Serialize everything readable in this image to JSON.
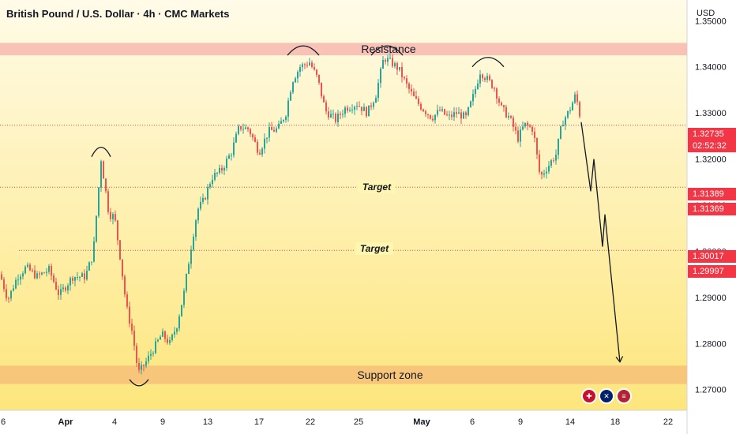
{
  "header": {
    "title": "British Pound / U.S. Dollar · 4h · CMC Markets",
    "currency": "USD"
  },
  "price_tags": {
    "current": "1.32735",
    "countdown": "02:52:32",
    "target1_a": "1.31389",
    "target1_b": "1.31369",
    "target2_a": "1.30017",
    "target2_b": "1.29997"
  },
  "colors": {
    "up": "#26a69a",
    "down": "#ef5350",
    "bg_top": "#fffbe6",
    "bg_bottom": "#fde98a",
    "resistance": "#f7b8b0",
    "support": "#f7c27a"
  },
  "chart_data": {
    "type": "candlestick",
    "symbol": "GBPUSD",
    "ylim": [
      1.2655,
      1.3545
    ],
    "y_ticks": [
      1.27,
      1.28,
      1.29,
      1.3,
      1.31,
      1.32,
      1.33,
      1.34,
      1.35
    ],
    "y_tick_labels": [
      "1.27000",
      "1.28000",
      "1.29000",
      "1.30000",
      "1.31000",
      "1.32000",
      "1.33000",
      "1.34000",
      "1.35000"
    ],
    "x_tick_labels": [
      "6",
      "Apr",
      "4",
      "9",
      "13",
      "17",
      "22",
      "25",
      "May",
      "6",
      "9",
      "14",
      "18",
      "22"
    ],
    "annotations": {
      "resistance_label": "Resistance",
      "resistance_range": [
        1.3425,
        1.3452
      ],
      "support_label": "Support zone",
      "support_range": [
        1.2712,
        1.2752
      ],
      "target1_label": "Target",
      "target1_level": 1.3139,
      "target2_label": "Target",
      "target2_level": 1.3002,
      "current_level": 1.32735
    },
    "ohlc_anchors": [
      [
        0,
        1.295
      ],
      [
        10,
        1.2895
      ],
      [
        22,
        1.2945
      ],
      [
        33,
        1.2965
      ],
      [
        47,
        1.2945
      ],
      [
        62,
        1.296
      ],
      [
        75,
        1.2905
      ],
      [
        92,
        1.2945
      ],
      [
        108,
        1.2945
      ],
      [
        118,
        1.2995
      ],
      [
        128,
        1.32
      ],
      [
        138,
        1.308
      ],
      [
        145,
        1.3075
      ],
      [
        152,
        1.299
      ],
      [
        160,
        1.288
      ],
      [
        168,
        1.282
      ],
      [
        175,
        1.2735
      ],
      [
        185,
        1.276
      ],
      [
        195,
        1.279
      ],
      [
        205,
        1.282
      ],
      [
        215,
        1.28
      ],
      [
        224,
        1.284
      ],
      [
        233,
        1.291
      ],
      [
        241,
        1.3
      ],
      [
        250,
        1.309
      ],
      [
        258,
        1.311
      ],
      [
        268,
        1.316
      ],
      [
        280,
        1.3175
      ],
      [
        293,
        1.3215
      ],
      [
        303,
        1.327
      ],
      [
        315,
        1.3265
      ],
      [
        328,
        1.3215
      ],
      [
        340,
        1.326
      ],
      [
        352,
        1.3265
      ],
      [
        362,
        1.33
      ],
      [
        370,
        1.337
      ],
      [
        380,
        1.34
      ],
      [
        392,
        1.341
      ],
      [
        402,
        1.3375
      ],
      [
        412,
        1.3305
      ],
      [
        425,
        1.3285
      ],
      [
        437,
        1.331
      ],
      [
        452,
        1.332
      ],
      [
        465,
        1.33
      ],
      [
        476,
        1.334
      ],
      [
        486,
        1.342
      ],
      [
        495,
        1.341
      ],
      [
        505,
        1.3395
      ],
      [
        515,
        1.336
      ],
      [
        525,
        1.333
      ],
      [
        535,
        1.331
      ],
      [
        547,
        1.329
      ],
      [
        557,
        1.3305
      ],
      [
        568,
        1.329
      ],
      [
        578,
        1.33
      ],
      [
        590,
        1.329
      ],
      [
        600,
        1.334
      ],
      [
        608,
        1.339
      ],
      [
        616,
        1.3375
      ],
      [
        626,
        1.3355
      ],
      [
        635,
        1.331
      ],
      [
        645,
        1.329
      ],
      [
        656,
        1.3245
      ],
      [
        664,
        1.3275
      ],
      [
        675,
        1.3265
      ],
      [
        684,
        1.316
      ],
      [
        694,
        1.3185
      ],
      [
        704,
        1.321
      ],
      [
        712,
        1.328
      ],
      [
        721,
        1.3305
      ],
      [
        729,
        1.334
      ],
      [
        736,
        1.328
      ]
    ],
    "projection": [
      [
        736,
        1.328
      ],
      [
        748,
        1.313
      ],
      [
        752,
        1.32
      ],
      [
        763,
        1.301
      ],
      [
        766,
        1.308
      ],
      [
        785,
        1.276
      ]
    ],
    "arcs": [
      [
        128,
        1.3205
      ],
      [
        176,
        1.2722
      ],
      [
        384,
        1.3425
      ],
      [
        490,
        1.3425
      ],
      [
        618,
        1.34
      ]
    ]
  }
}
